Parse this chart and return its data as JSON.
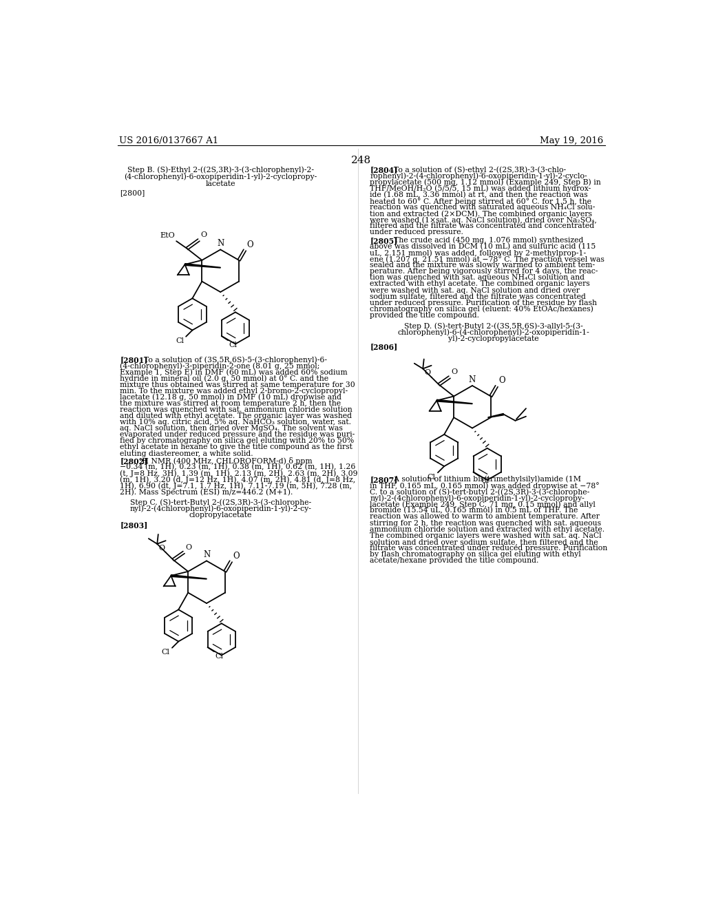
{
  "page_number": "248",
  "patent_number": "US 2016/0137667 A1",
  "patent_date": "May 19, 2016",
  "background_color": "#ffffff",
  "text_color": "#000000"
}
